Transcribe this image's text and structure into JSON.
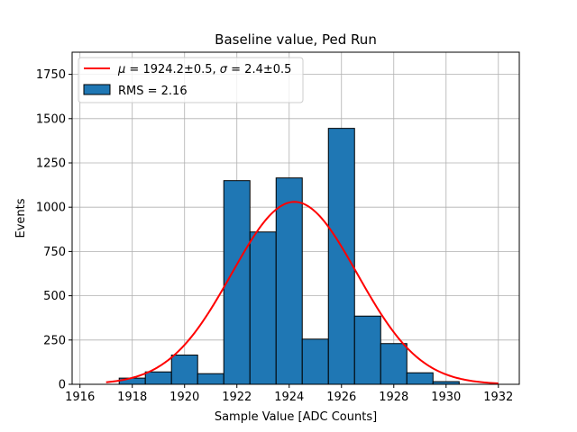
{
  "chart_data": {
    "type": "bar",
    "title": "Baseline value, Ped Run",
    "xlabel": "Sample Value [ADC Counts]",
    "ylabel": "Events",
    "xlim": [
      1915.7,
      1932.8
    ],
    "ylim": [
      0,
      1875
    ],
    "xticks": [
      1916,
      1918,
      1920,
      1922,
      1924,
      1926,
      1928,
      1930,
      1932
    ],
    "xtick_labels": [
      "1916",
      "1918",
      "1920",
      "1922",
      "1924",
      "1926",
      "1928",
      "1930",
      "1932"
    ],
    "yticks": [
      0,
      250,
      500,
      750,
      1000,
      1250,
      1500,
      1750
    ],
    "ytick_labels": [
      "0",
      "250",
      "500",
      "750",
      "1000",
      "1250",
      "1500",
      "1750"
    ],
    "grid": true,
    "legend_position": "top-left",
    "histogram": {
      "name": "RMS = 2.16",
      "color": "#1f77b4",
      "edgecolor": "#000000",
      "bin_edges": [
        1917.5,
        1918.5,
        1919.5,
        1920.5,
        1921.5,
        1922.5,
        1923.5,
        1924.5,
        1925.5,
        1926.5,
        1927.5,
        1928.5,
        1929.5,
        1930.5
      ],
      "counts": [
        35,
        70,
        165,
        60,
        1150,
        860,
        1165,
        255,
        1445,
        385,
        230,
        65,
        15
      ]
    },
    "fit": {
      "name": "$\\mu = 1924.2$±0.5, $\\sigma = 2.4$±0.5",
      "legend_parts": [
        "μ",
        " = 1924.2±0.5, ",
        "σ",
        " = 2.4±0.5"
      ],
      "type": "gaussian",
      "mu": 1924.2,
      "sigma": 2.4,
      "amplitude": 1030,
      "x_range": [
        1917.0,
        1932.0
      ],
      "color": "#ff0000"
    }
  }
}
